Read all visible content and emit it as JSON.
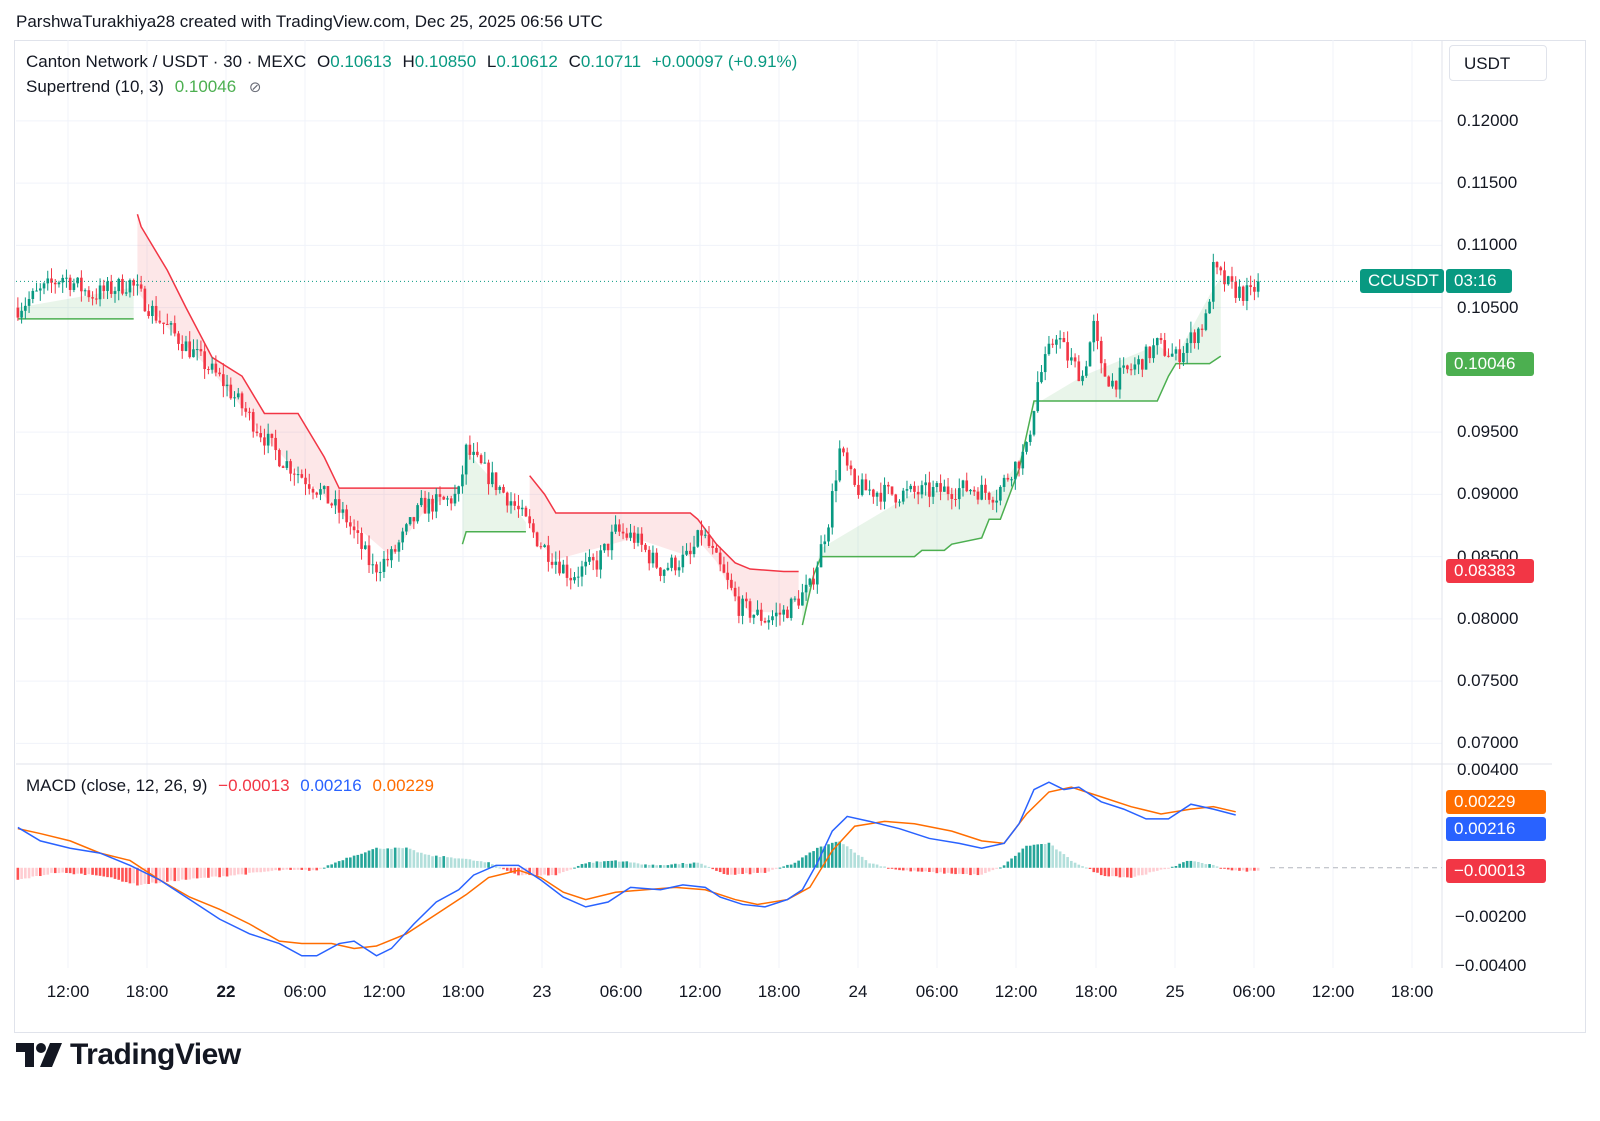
{
  "attribution": "ParshwaTurakhiya28 created with TradingView.com, Dec 25, 2025 06:56 UTC",
  "legend": {
    "symbol": "Canton Network / USDT · 30 · MEXC",
    "o_label": "O",
    "o": "0.10613",
    "h_label": "H",
    "h": "0.10850",
    "l_label": "L",
    "l": "0.10612",
    "c_label": "C",
    "c": "0.10711",
    "change": "+0.00097 (+0.91%)"
  },
  "supertrend": {
    "label": "Supertrend (10, 3)",
    "value": "0.10046",
    "eye": "⊘"
  },
  "macd": {
    "label": "MACD (close, 12, 26, 9)",
    "hist": "−0.00013",
    "macd": "0.00216",
    "signal": "0.00229"
  },
  "currency": "USDT",
  "price_axis": [
    "0.12000",
    "0.11500",
    "0.11000",
    "0.10500",
    "0.09500",
    "0.09000",
    "0.08500",
    "0.08000",
    "0.07500",
    "0.07000"
  ],
  "macd_axis": [
    "0.00400",
    "−0.00200",
    "−0.00400"
  ],
  "time_axis": [
    {
      "t": "12:00",
      "bold": false
    },
    {
      "t": "18:00",
      "bold": false
    },
    {
      "t": "22",
      "bold": true
    },
    {
      "t": "06:00",
      "bold": false
    },
    {
      "t": "12:00",
      "bold": false
    },
    {
      "t": "18:00",
      "bold": false
    },
    {
      "t": "23",
      "bold": false
    },
    {
      "t": "06:00",
      "bold": false
    },
    {
      "t": "12:00",
      "bold": false
    },
    {
      "t": "18:00",
      "bold": false
    },
    {
      "t": "24",
      "bold": false
    },
    {
      "t": "06:00",
      "bold": false
    },
    {
      "t": "12:00",
      "bold": false
    },
    {
      "t": "18:00",
      "bold": false
    },
    {
      "t": "25",
      "bold": false
    },
    {
      "t": "06:00",
      "bold": false
    },
    {
      "t": "12:00",
      "bold": false
    },
    {
      "t": "18:00",
      "bold": false
    }
  ],
  "tags": {
    "symbol": "CCUSDT",
    "countdown": "03:16",
    "supertrend_up": "0.10046",
    "supertrend_down": "0.08383",
    "signal": "0.00229",
    "macd": "0.00216",
    "hist": "−0.00013"
  },
  "brand": "TradingView",
  "colors": {
    "up": "#089981",
    "down": "#f23645",
    "st_up": "#4caf50",
    "st_down": "#f23645",
    "macd": "#2962ff",
    "signal": "#ff6d00",
    "hist_up_strong": "#26a69a",
    "hist_up_weak": "#b2dfdb",
    "hist_dn_strong": "#ff5252",
    "hist_dn_weak": "#ffcdd2"
  },
  "chart_data": [
    {
      "type": "candlestick",
      "title": "Canton Network / USDT · 30 · MEXC",
      "ylim": [
        0.0685,
        0.1265
      ],
      "anchors": [
        [
          0,
          0.105
        ],
        [
          12,
          0.1075
        ],
        [
          20,
          0.106
        ],
        [
          30,
          0.107
        ],
        [
          38,
          0.104
        ],
        [
          55,
          0.099
        ],
        [
          70,
          0.093
        ],
        [
          80,
          0.0905
        ],
        [
          88,
          0.088
        ],
        [
          95,
          0.084
        ],
        [
          100,
          0.085
        ],
        [
          108,
          0.089
        ],
        [
          115,
          0.0895
        ],
        [
          118,
          0.09
        ],
        [
          120,
          0.0935
        ],
        [
          126,
          0.0915
        ],
        [
          132,
          0.0895
        ],
        [
          140,
          0.086
        ],
        [
          148,
          0.0835
        ],
        [
          155,
          0.0845
        ],
        [
          160,
          0.087
        ],
        [
          165,
          0.0865
        ],
        [
          172,
          0.084
        ],
        [
          180,
          0.085
        ],
        [
          183,
          0.087
        ],
        [
          188,
          0.084
        ],
        [
          193,
          0.081
        ],
        [
          200,
          0.08
        ],
        [
          205,
          0.0805
        ],
        [
          212,
          0.0825
        ],
        [
          214,
          0.0845
        ],
        [
          217,
          0.088
        ],
        [
          220,
          0.0935
        ],
        [
          224,
          0.0905
        ],
        [
          235,
          0.09
        ],
        [
          255,
          0.0905
        ],
        [
          262,
          0.09
        ],
        [
          266,
          0.092
        ],
        [
          270,
          0.0935
        ],
        [
          273,
          0.099
        ],
        [
          278,
          0.103
        ],
        [
          281,
          0.101
        ],
        [
          285,
          0.0995
        ],
        [
          288,
          0.1035
        ],
        [
          290,
          0.1
        ],
        [
          293,
          0.099
        ],
        [
          300,
          0.1005
        ],
        [
          305,
          0.102
        ],
        [
          310,
          0.101
        ],
        [
          314,
          0.1025
        ],
        [
          318,
          0.104
        ],
        [
          320,
          0.108
        ],
        [
          325,
          0.1065
        ],
        [
          330,
          0.106
        ],
        [
          332,
          0.1071
        ]
      ],
      "current_close": 0.10711,
      "supertrend": [
        [
          0,
          0.1041,
          "up"
        ],
        [
          31,
          0.1041,
          "up"
        ],
        [
          32,
          0.1125,
          "down"
        ],
        [
          33,
          0.1115,
          "down"
        ],
        [
          40,
          0.108,
          "down"
        ],
        [
          45,
          0.105,
          "down"
        ],
        [
          52,
          0.101,
          "down"
        ],
        [
          60,
          0.0995,
          "down"
        ],
        [
          66,
          0.0965,
          "down"
        ],
        [
          75,
          0.0965,
          "down"
        ],
        [
          82,
          0.093,
          "down"
        ],
        [
          86,
          0.0905,
          "down"
        ],
        [
          100,
          0.0905,
          "down"
        ],
        [
          110,
          0.0905,
          "down"
        ],
        [
          118,
          0.0905,
          "down"
        ],
        [
          119,
          0.086,
          "up"
        ],
        [
          120,
          0.087,
          "up"
        ],
        [
          127,
          0.087,
          "up"
        ],
        [
          136,
          0.087,
          "up"
        ],
        [
          137,
          0.0915,
          "down"
        ],
        [
          141,
          0.09,
          "down"
        ],
        [
          144,
          0.0885,
          "down"
        ],
        [
          165,
          0.0885,
          "down"
        ],
        [
          180,
          0.0885,
          "down"
        ],
        [
          182,
          0.088,
          "down"
        ],
        [
          187,
          0.086,
          "down"
        ],
        [
          192,
          0.0845,
          "down"
        ],
        [
          196,
          0.084,
          "down"
        ],
        [
          205,
          0.0838,
          "down"
        ],
        [
          209,
          0.0838,
          "down"
        ],
        [
          210,
          0.0795,
          "up"
        ],
        [
          213,
          0.0835,
          "up"
        ],
        [
          215,
          0.085,
          "up"
        ],
        [
          240,
          0.085,
          "up"
        ],
        [
          242,
          0.0855,
          "up"
        ],
        [
          248,
          0.0855,
          "up"
        ],
        [
          250,
          0.086,
          "up"
        ],
        [
          258,
          0.0865,
          "up"
        ],
        [
          260,
          0.088,
          "up"
        ],
        [
          263,
          0.088,
          "up"
        ],
        [
          268,
          0.092,
          "up"
        ],
        [
          272,
          0.0975,
          "up"
        ],
        [
          285,
          0.0975,
          "up"
        ],
        [
          305,
          0.0975,
          "up"
        ],
        [
          308,
          0.0995,
          "up"
        ],
        [
          310,
          0.1005,
          "up"
        ],
        [
          319,
          0.1005,
          "up"
        ],
        [
          322,
          0.1011,
          "up"
        ]
      ]
    },
    {
      "type": "line",
      "title": "MACD (close, 12, 26, 9)",
      "ylim": [
        -0.0041,
        0.004
      ],
      "macd": [
        [
          0,
          0.00165
        ],
        [
          6,
          0.0011
        ],
        [
          14,
          0.0008
        ],
        [
          22,
          0.0006
        ],
        [
          30,
          0.0001
        ],
        [
          38,
          -0.0005
        ],
        [
          46,
          -0.0013
        ],
        [
          54,
          -0.0021
        ],
        [
          62,
          -0.0027
        ],
        [
          70,
          -0.0031
        ],
        [
          76,
          -0.0036
        ],
        [
          80,
          -0.0036
        ],
        [
          86,
          -0.0031
        ],
        [
          90,
          -0.003
        ],
        [
          96,
          -0.0036
        ],
        [
          100,
          -0.0033
        ],
        [
          106,
          -0.0023
        ],
        [
          112,
          -0.0014
        ],
        [
          118,
          -0.0009
        ],
        [
          122,
          -0.0003
        ],
        [
          128,
          0.0001
        ],
        [
          134,
          0.0001
        ],
        [
          140,
          -0.0005
        ],
        [
          146,
          -0.0012
        ],
        [
          152,
          -0.0016
        ],
        [
          158,
          -0.0014
        ],
        [
          164,
          -0.0008
        ],
        [
          172,
          -0.0009
        ],
        [
          178,
          -0.0007
        ],
        [
          184,
          -0.0008
        ],
        [
          188,
          -0.0012
        ],
        [
          194,
          -0.0015
        ],
        [
          200,
          -0.0016
        ],
        [
          206,
          -0.0013
        ],
        [
          210,
          -0.0009
        ],
        [
          214,
          0.0002
        ],
        [
          218,
          0.0015
        ],
        [
          222,
          0.0021
        ],
        [
          228,
          0.0019
        ],
        [
          236,
          0.0016
        ],
        [
          244,
          0.0012
        ],
        [
          252,
          0.001
        ],
        [
          258,
          0.0008
        ],
        [
          264,
          0.001
        ],
        [
          268,
          0.0018
        ],
        [
          272,
          0.0032
        ],
        [
          276,
          0.0035
        ],
        [
          280,
          0.0032
        ],
        [
          284,
          0.0033
        ],
        [
          290,
          0.0027
        ],
        [
          296,
          0.0024
        ],
        [
          302,
          0.002
        ],
        [
          308,
          0.002
        ],
        [
          314,
          0.0026
        ],
        [
          320,
          0.0024
        ],
        [
          326,
          0.00216
        ]
      ],
      "signal": [
        [
          0,
          0.0016
        ],
        [
          6,
          0.0014
        ],
        [
          14,
          0.0011
        ],
        [
          22,
          0.0006
        ],
        [
          30,
          0.0003
        ],
        [
          38,
          -0.0005
        ],
        [
          46,
          -0.0012
        ],
        [
          54,
          -0.0017
        ],
        [
          62,
          -0.0023
        ],
        [
          70,
          -0.003
        ],
        [
          76,
          -0.0031
        ],
        [
          84,
          -0.0031
        ],
        [
          90,
          -0.0033
        ],
        [
          96,
          -0.0032
        ],
        [
          104,
          -0.0027
        ],
        [
          112,
          -0.0019
        ],
        [
          120,
          -0.0011
        ],
        [
          126,
          -0.0004
        ],
        [
          134,
          -0.0001
        ],
        [
          140,
          -0.0004
        ],
        [
          146,
          -0.001
        ],
        [
          152,
          -0.0013
        ],
        [
          160,
          -0.001
        ],
        [
          168,
          -0.0009
        ],
        [
          176,
          -0.0008
        ],
        [
          184,
          -0.0009
        ],
        [
          192,
          -0.0013
        ],
        [
          198,
          -0.0015
        ],
        [
          206,
          -0.0013
        ],
        [
          212,
          -0.0008
        ],
        [
          218,
          0.0007
        ],
        [
          224,
          0.0017
        ],
        [
          232,
          0.0019
        ],
        [
          240,
          0.0018
        ],
        [
          250,
          0.0015
        ],
        [
          258,
          0.0011
        ],
        [
          264,
          0.001
        ],
        [
          270,
          0.0022
        ],
        [
          276,
          0.0031
        ],
        [
          282,
          0.0033
        ],
        [
          290,
          0.0029
        ],
        [
          298,
          0.0025
        ],
        [
          306,
          0.0022
        ],
        [
          314,
          0.0024
        ],
        [
          320,
          0.0025
        ],
        [
          326,
          0.00229
        ]
      ],
      "histogram_profile": [
        [
          0,
          -0.0005
        ],
        [
          10,
          -0.0002
        ],
        [
          22,
          -0.0003
        ],
        [
          32,
          -0.0007
        ],
        [
          44,
          -0.0005
        ],
        [
          58,
          -0.0003
        ],
        [
          70,
          -0.0001
        ],
        [
          80,
          -0.0001
        ],
        [
          88,
          0.0004
        ],
        [
          96,
          0.0008
        ],
        [
          104,
          0.0008
        ],
        [
          110,
          0.0005
        ],
        [
          118,
          0.0004
        ],
        [
          126,
          0.0002
        ],
        [
          134,
          -0.0003
        ],
        [
          144,
          -0.0003
        ],
        [
          152,
          0.0002
        ],
        [
          160,
          0.0003
        ],
        [
          170,
          0.0001
        ],
        [
          182,
          0.0002
        ],
        [
          190,
          -0.0003
        ],
        [
          200,
          -0.0002
        ],
        [
          208,
          0.0002
        ],
        [
          214,
          0.0008
        ],
        [
          220,
          0.0011
        ],
        [
          228,
          0.0002
        ],
        [
          236,
          -0.0001
        ],
        [
          246,
          -0.0002
        ],
        [
          258,
          -0.0003
        ],
        [
          264,
          0.0001
        ],
        [
          270,
          0.0009
        ],
        [
          276,
          0.001
        ],
        [
          282,
          0.0003
        ],
        [
          290,
          -0.0003
        ],
        [
          298,
          -0.0004
        ],
        [
          306,
          -0.0001
        ],
        [
          314,
          0.0003
        ],
        [
          320,
          0.0001
        ],
        [
          326,
          -0.00013
        ]
      ]
    }
  ]
}
